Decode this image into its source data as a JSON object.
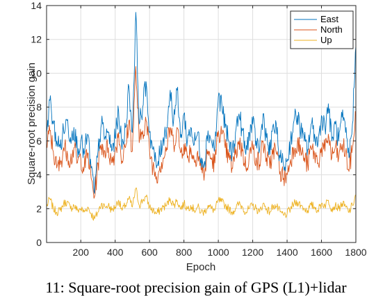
{
  "caption": "11: Square-root precision gain of GPS (L1)+lidar",
  "chart_data": {
    "type": "line",
    "xlabel": "Epoch",
    "ylabel": "Square-root precision gain",
    "xlim": [
      1,
      1800
    ],
    "ylim": [
      0,
      14
    ],
    "xticks": [
      200,
      400,
      600,
      800,
      1000,
      1200,
      1400,
      1600,
      1800
    ],
    "yticks": [
      0,
      2,
      4,
      6,
      8,
      10,
      12,
      14
    ],
    "grid": true,
    "legend_position": "top-right",
    "series_resolution_epochs": 20,
    "series": [
      {
        "name": "East",
        "color": "#0072BD",
        "x": [
          1,
          20,
          40,
          60,
          80,
          100,
          120,
          140,
          160,
          180,
          200,
          220,
          240,
          260,
          280,
          300,
          320,
          340,
          360,
          380,
          400,
          420,
          440,
          460,
          480,
          500,
          520,
          540,
          560,
          580,
          600,
          620,
          640,
          660,
          680,
          700,
          720,
          740,
          760,
          780,
          800,
          820,
          840,
          860,
          880,
          900,
          920,
          940,
          960,
          980,
          1000,
          1020,
          1040,
          1060,
          1080,
          1100,
          1120,
          1140,
          1160,
          1180,
          1200,
          1220,
          1240,
          1260,
          1280,
          1300,
          1320,
          1340,
          1360,
          1380,
          1400,
          1420,
          1440,
          1460,
          1480,
          1500,
          1520,
          1540,
          1560,
          1580,
          1600,
          1620,
          1640,
          1660,
          1680,
          1700,
          1720,
          1740,
          1760,
          1780,
          1800
        ],
        "values": [
          6.5,
          8.4,
          7.0,
          6.0,
          5.6,
          6.6,
          7.2,
          6.2,
          6.8,
          5.6,
          6.0,
          5.2,
          6.4,
          4.4,
          2.9,
          5.4,
          7.0,
          6.2,
          6.5,
          5.4,
          6.2,
          7.8,
          5.5,
          6.8,
          9.2,
          6.5,
          13.6,
          7.0,
          8.0,
          9.5,
          6.5,
          5.5,
          4.4,
          5.2,
          6.2,
          6.8,
          9.0,
          7.2,
          9.0,
          6.2,
          7.6,
          6.0,
          6.8,
          5.8,
          6.5,
          5.0,
          4.8,
          6.6,
          6.0,
          5.6,
          8.6,
          8.2,
          6.8,
          6.0,
          5.2,
          6.5,
          7.6,
          6.6,
          5.2,
          6.5,
          7.0,
          6.0,
          5.5,
          7.6,
          6.2,
          5.2,
          7.0,
          6.4,
          5.0,
          4.5,
          4.8,
          6.0,
          7.2,
          7.5,
          6.6,
          6.0,
          5.5,
          7.0,
          6.4,
          5.8,
          7.5,
          6.8,
          8.2,
          6.0,
          7.0,
          6.0,
          7.4,
          6.5,
          5.0,
          7.0,
          11.6
        ]
      },
      {
        "name": "North",
        "color": "#D95319",
        "x": [
          1,
          20,
          40,
          60,
          80,
          100,
          120,
          140,
          160,
          180,
          200,
          220,
          240,
          260,
          280,
          300,
          320,
          340,
          360,
          380,
          400,
          420,
          440,
          460,
          480,
          500,
          520,
          540,
          560,
          580,
          600,
          620,
          640,
          660,
          680,
          700,
          720,
          740,
          760,
          780,
          800,
          820,
          840,
          860,
          880,
          900,
          920,
          940,
          960,
          980,
          1000,
          1020,
          1040,
          1060,
          1080,
          1100,
          1120,
          1140,
          1160,
          1180,
          1200,
          1220,
          1240,
          1260,
          1280,
          1300,
          1320,
          1340,
          1360,
          1380,
          1400,
          1420,
          1440,
          1460,
          1480,
          1500,
          1520,
          1540,
          1560,
          1580,
          1600,
          1620,
          1640,
          1660,
          1680,
          1700,
          1720,
          1740,
          1760,
          1780,
          1800
        ],
        "values": [
          5.6,
          6.6,
          5.4,
          4.4,
          4.6,
          5.6,
          5.4,
          4.8,
          5.6,
          4.7,
          5.0,
          4.4,
          5.3,
          3.8,
          2.7,
          4.7,
          5.8,
          5.4,
          5.6,
          4.7,
          5.4,
          6.5,
          4.8,
          5.6,
          7.2,
          5.4,
          10.4,
          5.9,
          6.6,
          7.2,
          5.4,
          4.5,
          3.9,
          4.5,
          5.0,
          5.6,
          6.8,
          5.8,
          6.8,
          5.3,
          5.8,
          5.0,
          5.6,
          4.8,
          5.4,
          4.3,
          4.1,
          5.4,
          4.9,
          4.7,
          6.6,
          6.4,
          5.6,
          5.0,
          4.4,
          5.2,
          6.0,
          5.4,
          4.4,
          5.2,
          5.6,
          5.0,
          4.6,
          6.0,
          5.0,
          4.4,
          5.6,
          5.2,
          4.2,
          3.8,
          4.0,
          4.9,
          5.6,
          5.9,
          5.4,
          5.0,
          4.6,
          5.6,
          5.2,
          4.7,
          5.6,
          5.4,
          6.4,
          5.0,
          5.6,
          5.0,
          5.8,
          5.3,
          4.2,
          5.6,
          7.6
        ]
      },
      {
        "name": "Up",
        "color": "#EDB120",
        "x": [
          1,
          20,
          40,
          60,
          80,
          100,
          120,
          140,
          160,
          180,
          200,
          220,
          240,
          260,
          280,
          300,
          320,
          340,
          360,
          380,
          400,
          420,
          440,
          460,
          480,
          500,
          520,
          540,
          560,
          580,
          600,
          620,
          640,
          660,
          680,
          700,
          720,
          740,
          760,
          780,
          800,
          820,
          840,
          860,
          880,
          900,
          920,
          940,
          960,
          980,
          1000,
          1020,
          1040,
          1060,
          1080,
          1100,
          1120,
          1140,
          1160,
          1180,
          1200,
          1220,
          1240,
          1260,
          1280,
          1300,
          1320,
          1340,
          1360,
          1380,
          1400,
          1420,
          1440,
          1460,
          1480,
          1500,
          1520,
          1540,
          1560,
          1580,
          1600,
          1620,
          1640,
          1660,
          1680,
          1700,
          1720,
          1740,
          1760,
          1780,
          1800
        ],
        "values": [
          2.1,
          2.6,
          2.0,
          1.8,
          1.9,
          2.3,
          2.4,
          2.0,
          2.2,
          1.9,
          2.0,
          1.8,
          2.1,
          1.7,
          1.4,
          1.8,
          2.3,
          2.1,
          2.2,
          1.9,
          2.1,
          2.5,
          1.9,
          2.2,
          2.6,
          2.1,
          3.2,
          2.2,
          2.5,
          2.7,
          2.1,
          1.9,
          1.7,
          1.9,
          2.1,
          2.2,
          2.6,
          2.2,
          2.5,
          2.0,
          2.3,
          2.0,
          2.2,
          1.9,
          2.1,
          1.8,
          1.8,
          2.2,
          2.0,
          1.9,
          2.5,
          2.4,
          2.2,
          2.0,
          1.8,
          2.0,
          2.3,
          2.1,
          1.8,
          2.0,
          2.2,
          2.0,
          1.8,
          2.3,
          2.0,
          1.8,
          2.2,
          2.1,
          1.8,
          1.6,
          1.7,
          2.0,
          2.3,
          2.4,
          2.2,
          2.0,
          1.9,
          2.2,
          2.1,
          1.9,
          2.3,
          2.2,
          2.5,
          2.0,
          2.2,
          2.0,
          2.3,
          2.1,
          1.8,
          2.2,
          2.8
        ]
      }
    ]
  }
}
